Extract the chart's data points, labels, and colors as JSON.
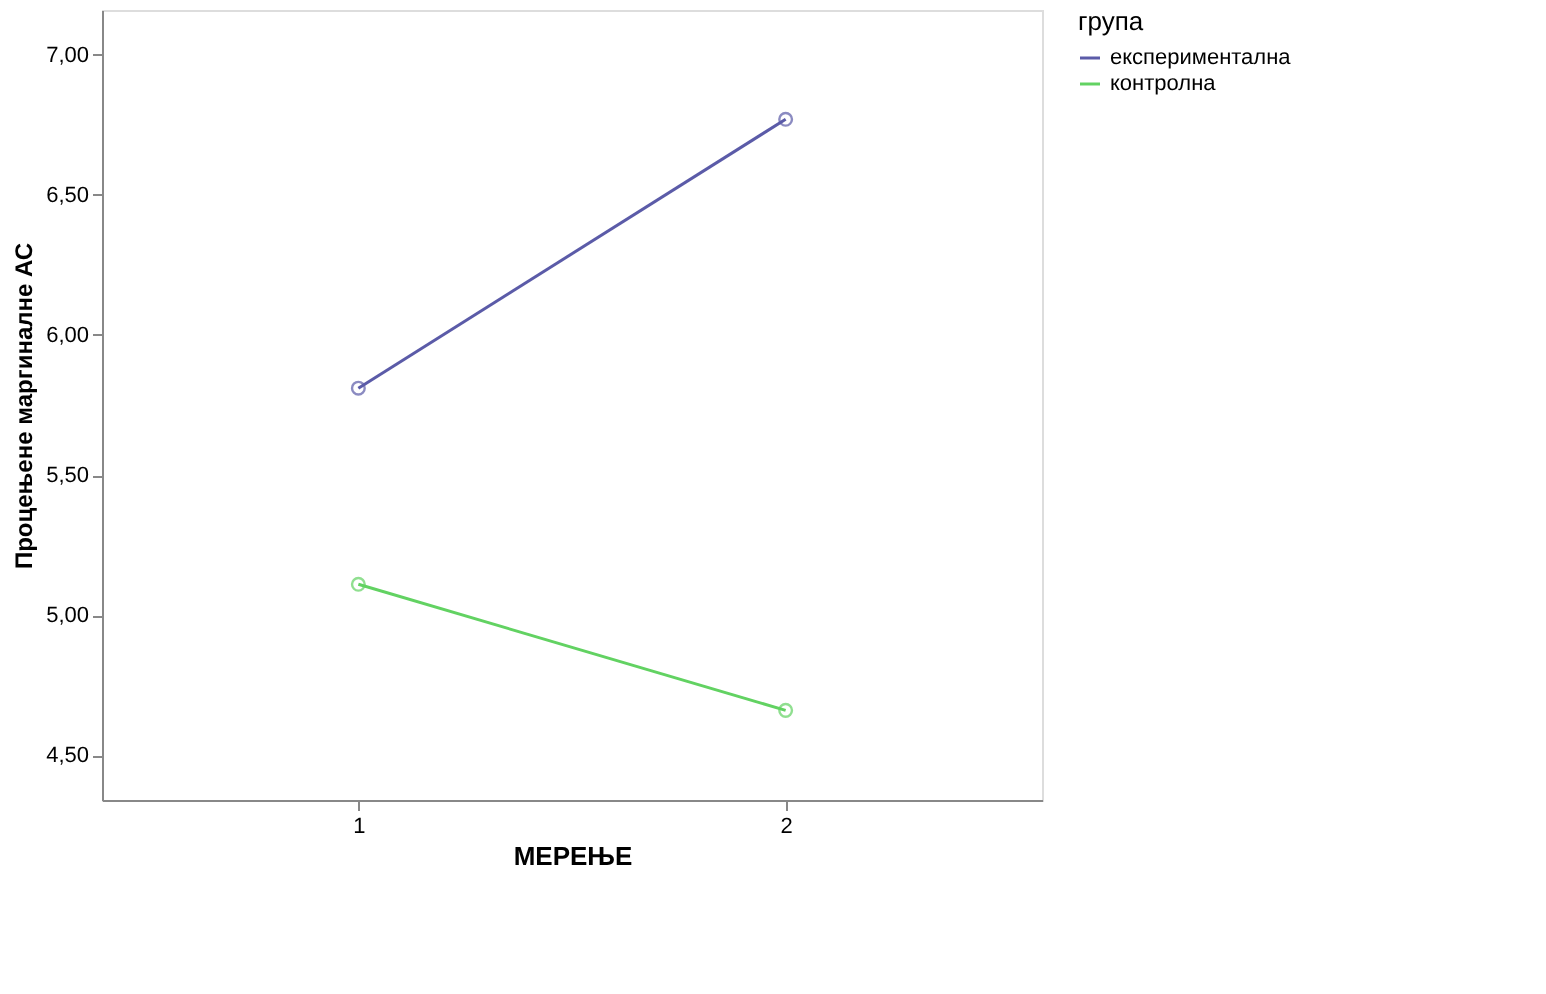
{
  "chart_data": {
    "type": "line",
    "xlabel": "МЕРЕЊЕ",
    "ylabel": "Процењене маргиналне АС",
    "legend_title": "група",
    "categories": [
      "1",
      "2"
    ],
    "series": [
      {
        "name": "експериментална",
        "color": "#5b5ba8",
        "values": [
          5.81,
          6.77
        ]
      },
      {
        "name": "контролна",
        "color": "#62d262",
        "values": [
          5.11,
          4.66
        ]
      }
    ],
    "ylim": [
      4.34,
      7.16
    ],
    "yticks": [
      {
        "value": 4.5,
        "label": "4,50"
      },
      {
        "value": 5.0,
        "label": "5,00"
      },
      {
        "value": 5.5,
        "label": "5,50"
      },
      {
        "value": 6.0,
        "label": "6,00"
      },
      {
        "value": 6.5,
        "label": "6,50"
      },
      {
        "value": 7.0,
        "label": "7,00"
      }
    ],
    "marker": "circle",
    "line_style": "solid",
    "grid": false,
    "legend": "top right"
  }
}
